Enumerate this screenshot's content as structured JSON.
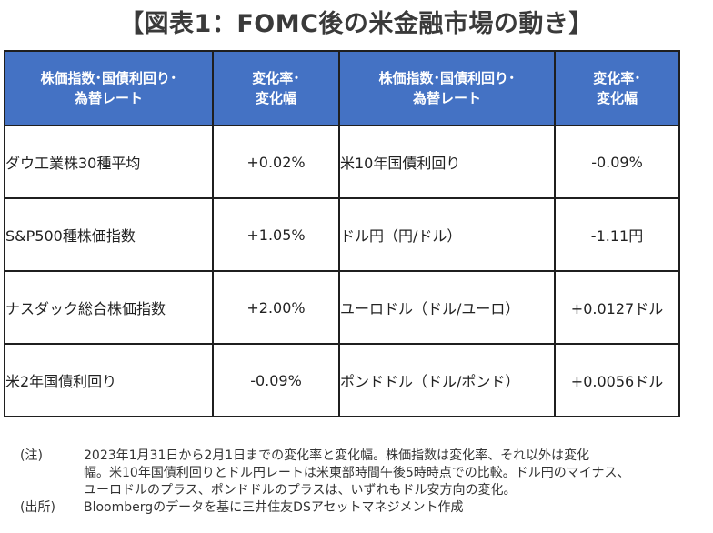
{
  "title": "【図表1：FOMC後の米金融市場の動き】",
  "table": {
    "headers": {
      "col1": [
        "株価指数･国債利回り･",
        "為替レート"
      ],
      "col2": [
        "変化率･",
        "変化幅"
      ],
      "col3": [
        "株価指数･国債利回り･",
        "為替レート"
      ],
      "col4": [
        "変化率･",
        "変化幅"
      ]
    },
    "rows": [
      {
        "left_label": "ダウ工業株30種平均",
        "left_value": "+0.02%",
        "right_label": "米10年国債利回り",
        "right_value": "-0.09%"
      },
      {
        "left_label": "S&P500種株価指数",
        "left_value": "+1.05%",
        "right_label": "ドル円（円/ドル）",
        "right_value": "-1.11円"
      },
      {
        "left_label": "ナスダック総合株価指数",
        "left_value": "+2.00%",
        "right_label": "ユーロドル（ドル/ユーロ）",
        "right_value": "+0.0127ドル"
      },
      {
        "left_label": "米2年国債利回り",
        "left_value": "-0.09%",
        "right_label": "ポンドドル（ドル/ポンド）",
        "right_value": "+0.0056ドル"
      }
    ]
  },
  "notes": {
    "note_tag": "(注)",
    "note_lines": [
      "2023年1月31日から2月1日までの変化率と変化幅。株価指数は変化率、それ以外は変化",
      "幅。米10年国債利回りとドル円レートは米東部時間午後5時時点での比較。ドル円のマイナス、",
      "ユーロドルのプラス、ポンドドルのプラスは、いずれもドル安方向の変化。"
    ],
    "source_tag": "(出所)",
    "source_text": "Bloombergのデータを基に三井住友DSアセットマネジメント作成"
  }
}
